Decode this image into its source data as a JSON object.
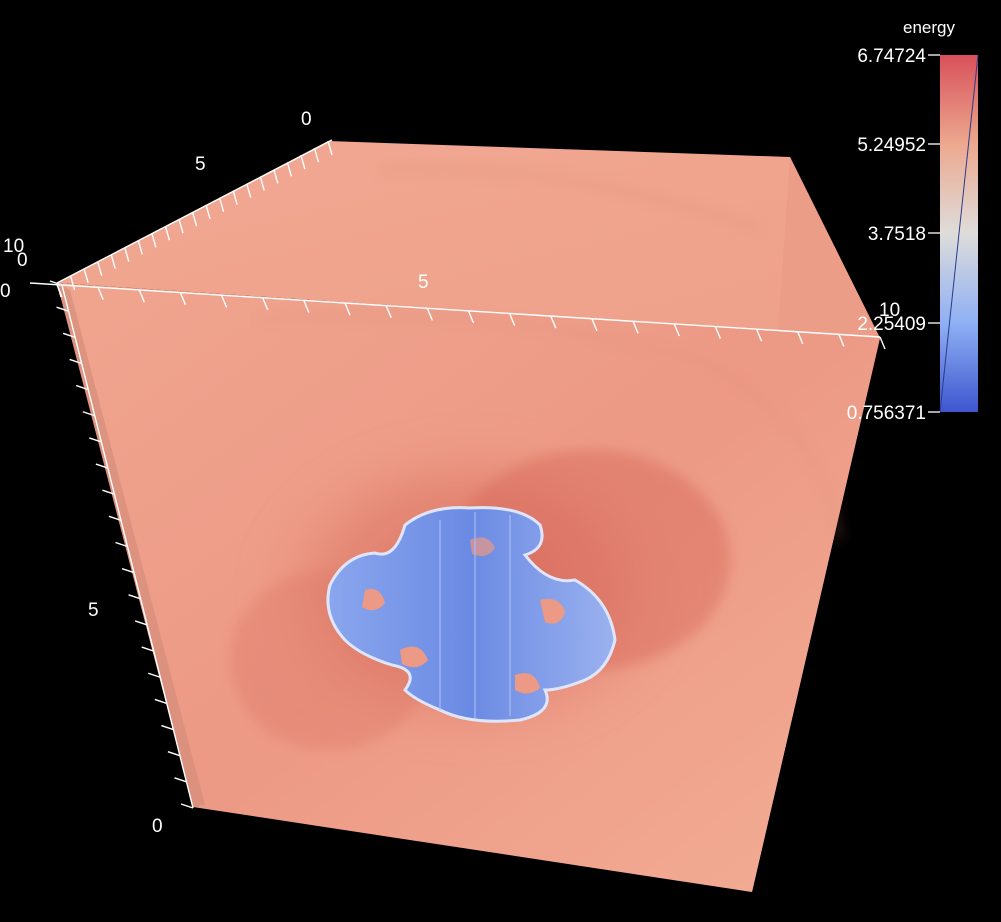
{
  "scene": {
    "background": "#000000",
    "volume_color": "#ec9a84",
    "blob_color": "#6f8ee6"
  },
  "axes": {
    "top_edge_labels": [
      "0",
      "5",
      "10"
    ],
    "front_edge_labels": [
      "0",
      "5",
      "10"
    ],
    "side_edge_labels": [
      "0",
      "5",
      "0"
    ],
    "left_partial_label": "0"
  },
  "legend": {
    "title": "energy",
    "ticks": [
      "6.74724",
      "5.24952",
      "3.7518",
      "2.25409",
      "0.756371"
    ],
    "colors": {
      "top": "#d9505a",
      "upper": "#eca98f",
      "mid": "#dedcda",
      "lower": "#8fb0f4",
      "bottom": "#3e56cf"
    }
  }
}
